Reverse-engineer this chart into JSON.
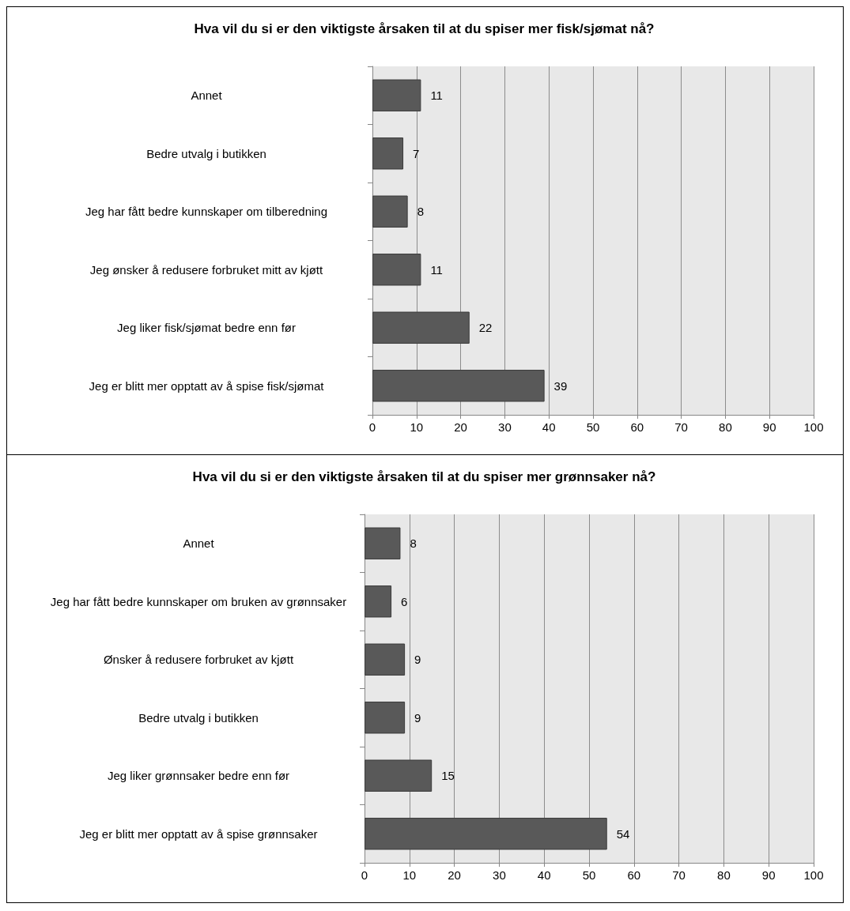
{
  "chart_data": [
    {
      "type": "bar",
      "orientation": "horizontal",
      "title": "Hva vil du si er den viktigste årsaken til at du spiser mer fisk/sjømat nå?",
      "categories": [
        "Annet",
        "Bedre utvalg i butikken",
        "Jeg har fått bedre kunnskaper om tilberedning",
        "Jeg ønsker å redusere forbruket mitt av kjøtt",
        "Jeg liker fisk/sjømat bedre enn før",
        "Jeg er blitt mer opptatt av å spise fisk/sjømat"
      ],
      "values": [
        11,
        7,
        8,
        11,
        22,
        39
      ],
      "color": "#595959",
      "xlim": [
        0,
        100
      ],
      "xticks": [
        0,
        10,
        20,
        30,
        40,
        50,
        60,
        70,
        80,
        90,
        100
      ],
      "grid": "x",
      "data_labels": true
    },
    {
      "type": "bar",
      "orientation": "horizontal",
      "title": "Hva vil du si er den viktigste årsaken til at du spiser mer grønnsaker nå?",
      "categories": [
        "Annet",
        "Jeg har fått bedre kunnskaper om bruken av grønnsaker",
        "Ønsker å redusere forbruket av kjøtt",
        "Bedre utvalg i butikken",
        "Jeg liker grønnsaker bedre enn før",
        "Jeg er blitt mer opptatt av å spise grønnsaker"
      ],
      "values": [
        8,
        6,
        9,
        9,
        15,
        54
      ],
      "color": "#595959",
      "xlim": [
        0,
        100
      ],
      "xticks": [
        0,
        10,
        20,
        30,
        40,
        50,
        60,
        70,
        80,
        90,
        100
      ],
      "grid": "x",
      "data_labels": true
    }
  ]
}
